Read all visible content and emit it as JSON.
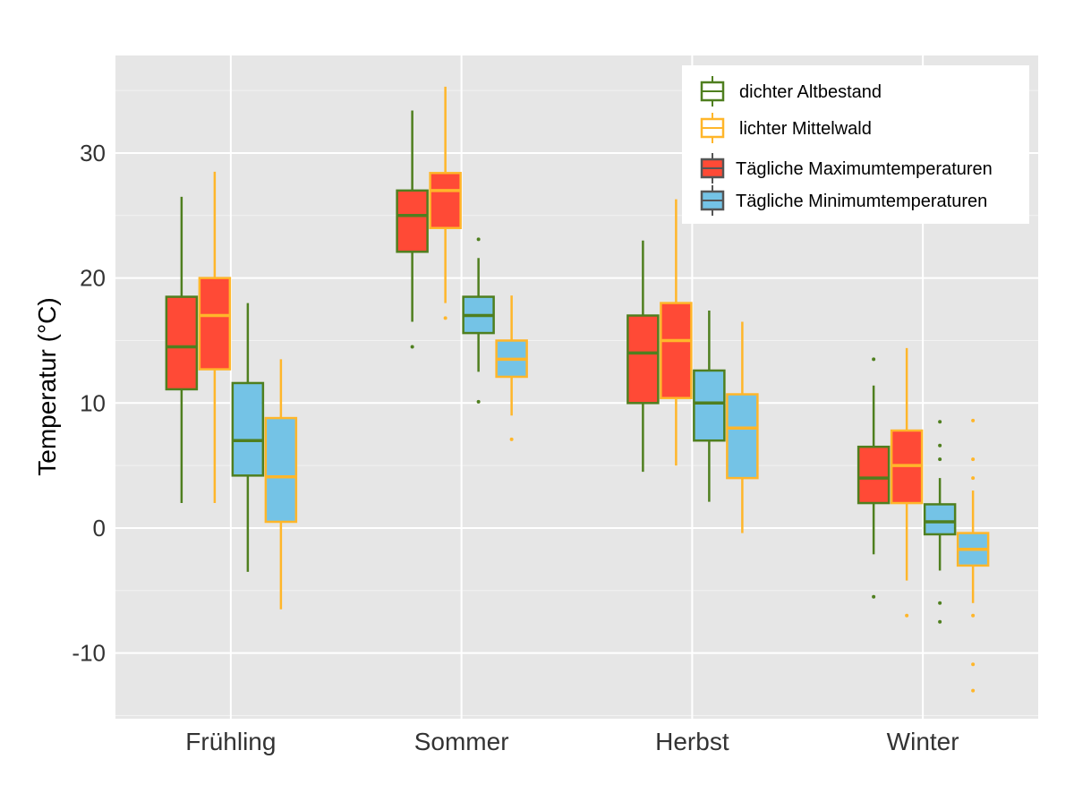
{
  "chart_data": {
    "type": "boxplot",
    "title": "",
    "xlabel": "",
    "ylabel": "Temperatur (°C)",
    "ylim": [
      -15.25,
      37.8
    ],
    "yticks": [
      -10,
      0,
      10,
      20,
      30
    ],
    "ytick_labels": [
      "-10",
      "0",
      "10",
      "20",
      "30"
    ],
    "categories": [
      "Frühling",
      "Sommer",
      "Herbst",
      "Winter"
    ],
    "grid": true,
    "background": "#e6e6e6",
    "legend_position": "top-right",
    "legend": {
      "outline": [
        {
          "label": "dichter Altbestand",
          "color": "#4f7f1f"
        },
        {
          "label": "lichter Mittelwald",
          "color": "#ffb62a"
        }
      ],
      "fill": [
        {
          "label": "Tägliche Maximumtemperaturen",
          "color": "#ff4a36"
        },
        {
          "label": "Tägliche Minimumtemperaturen",
          "color": "#74c3e6"
        }
      ]
    },
    "series": [
      {
        "name": "Tägliche Maximumtemperaturen / dichter Altbestand",
        "fill": "#ff4a36",
        "outline": "#4f7f1f",
        "boxes": [
          {
            "whisker_low": 2.0,
            "q1": 11.1,
            "median": 14.5,
            "q3": 18.5,
            "whisker_high": 26.5,
            "outliers": []
          },
          {
            "whisker_low": 16.5,
            "q1": 22.1,
            "median": 25.0,
            "q3": 27.0,
            "whisker_high": 33.4,
            "outliers": [
              14.5
            ]
          },
          {
            "whisker_low": 4.5,
            "q1": 10.0,
            "median": 14.0,
            "q3": 17.0,
            "whisker_high": 23.0,
            "outliers": []
          },
          {
            "whisker_low": -2.1,
            "q1": 2.0,
            "median": 4.0,
            "q3": 6.5,
            "whisker_high": 11.4,
            "outliers": [
              13.5,
              -5.5
            ]
          }
        ]
      },
      {
        "name": "Tägliche Maximumtemperaturen / lichter Mittelwald",
        "fill": "#ff4a36",
        "outline": "#ffb62a",
        "boxes": [
          {
            "whisker_low": 2.0,
            "q1": 12.7,
            "median": 17.0,
            "q3": 20.0,
            "whisker_high": 28.5,
            "outliers": []
          },
          {
            "whisker_low": 18.0,
            "q1": 24.0,
            "median": 27.0,
            "q3": 28.4,
            "whisker_high": 35.3,
            "outliers": [
              16.8
            ]
          },
          {
            "whisker_low": 5.0,
            "q1": 10.4,
            "median": 15.0,
            "q3": 18.0,
            "whisker_high": 26.3,
            "outliers": []
          },
          {
            "whisker_low": -4.2,
            "q1": 2.0,
            "median": 5.0,
            "q3": 7.8,
            "whisker_high": 14.4,
            "outliers": [
              -7.0
            ]
          }
        ]
      },
      {
        "name": "Tägliche Minimumtemperaturen / dichter Altbestand",
        "fill": "#74c3e6",
        "outline": "#4f7f1f",
        "boxes": [
          {
            "whisker_low": -3.5,
            "q1": 4.2,
            "median": 7.0,
            "q3": 11.6,
            "whisker_high": 18.0,
            "outliers": []
          },
          {
            "whisker_low": 12.5,
            "q1": 15.6,
            "median": 17.0,
            "q3": 18.5,
            "whisker_high": 21.6,
            "outliers": [
              23.1,
              10.1
            ]
          },
          {
            "whisker_low": 2.1,
            "q1": 7.0,
            "median": 10.0,
            "q3": 12.6,
            "whisker_high": 17.4,
            "outliers": []
          },
          {
            "whisker_low": -3.4,
            "q1": -0.5,
            "median": 0.5,
            "q3": 1.9,
            "whisker_high": 4.0,
            "outliers": [
              8.5,
              6.6,
              5.5,
              -6.0,
              -7.5
            ]
          }
        ]
      },
      {
        "name": "Tägliche Minimumtemperaturen / lichter Mittelwald",
        "fill": "#74c3e6",
        "outline": "#ffb62a",
        "boxes": [
          {
            "whisker_low": -6.5,
            "q1": 0.5,
            "median": 4.1,
            "q3": 8.8,
            "whisker_high": 13.5,
            "outliers": []
          },
          {
            "whisker_low": 9.0,
            "q1": 12.1,
            "median": 13.5,
            "q3": 15.0,
            "whisker_high": 18.6,
            "outliers": [
              7.1
            ]
          },
          {
            "whisker_low": -0.4,
            "q1": 4.0,
            "median": 8.0,
            "q3": 10.7,
            "whisker_high": 16.5,
            "outliers": []
          },
          {
            "whisker_low": -6.0,
            "q1": -3.0,
            "median": -1.7,
            "q3": -0.4,
            "whisker_high": 3.0,
            "outliers": [
              8.6,
              5.5,
              4.0,
              -7.0,
              -10.9,
              -13.0
            ]
          }
        ]
      }
    ]
  }
}
